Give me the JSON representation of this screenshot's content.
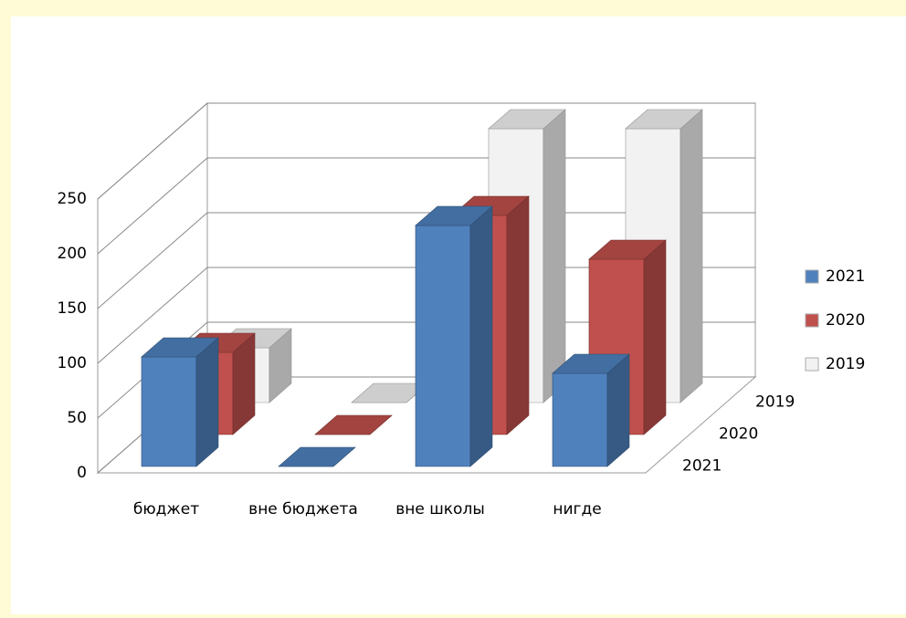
{
  "chart_data": {
    "type": "bar",
    "categories": [
      "бюджет",
      "вне бюджета",
      "вне школы",
      "нигде"
    ],
    "series": [
      {
        "name": "2021",
        "color": "#4f81bd",
        "values": [
          100,
          0,
          220,
          85
        ]
      },
      {
        "name": "2020",
        "color": "#c0504d",
        "values": [
          75,
          0,
          200,
          160
        ]
      },
      {
        "name": "2019",
        "color": "#f2f2f2",
        "values": [
          50,
          0,
          250,
          250
        ]
      }
    ],
    "ylim": [
      0,
      250
    ],
    "yticks": [
      0,
      50,
      100,
      150,
      200,
      250
    ],
    "grid": true,
    "legend": "right"
  }
}
